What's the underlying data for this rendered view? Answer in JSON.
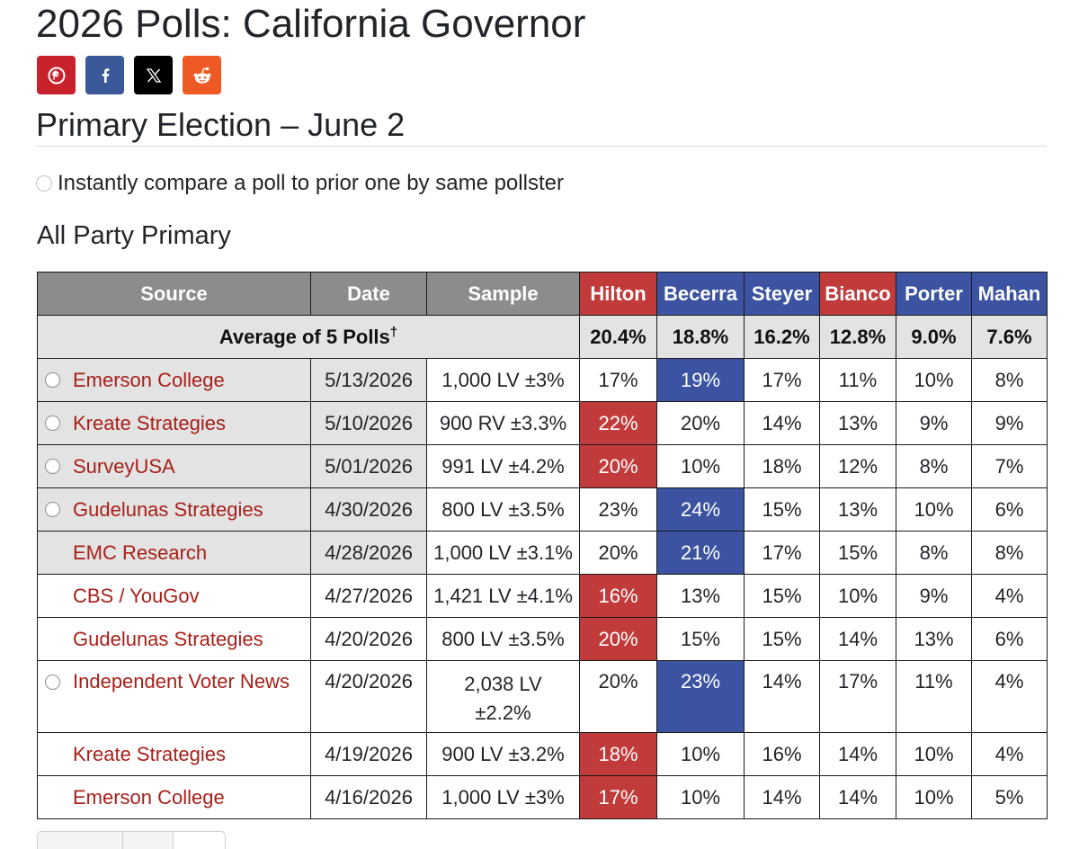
{
  "page": {
    "title": "2026 Polls: California Governor",
    "section_title": "Primary Election – June 2",
    "compare_label": "Instantly compare a poll to prior one by same pollster",
    "subsection_title": "All Party Primary"
  },
  "share": [
    {
      "name": "pinterest",
      "icon": "pinterest-icon",
      "color": "#c8232c"
    },
    {
      "name": "facebook",
      "icon": "facebook-icon",
      "color": "#3b5998"
    },
    {
      "name": "x",
      "icon": "x-icon",
      "color": "#000000"
    },
    {
      "name": "reddit",
      "icon": "reddit-icon",
      "color": "#ee5a24"
    }
  ],
  "table": {
    "headers": {
      "source": "Source",
      "date": "Date",
      "sample": "Sample",
      "candidates": [
        {
          "name": "Hilton",
          "party_color": "#c23b3b"
        },
        {
          "name": "Becerra",
          "party_color": "#3b53a0"
        },
        {
          "name": "Steyer",
          "party_color": "#3b53a0"
        },
        {
          "name": "Bianco",
          "party_color": "#c23b3b"
        },
        {
          "name": "Porter",
          "party_color": "#3b53a0"
        },
        {
          "name": "Mahan",
          "party_color": "#3b53a0"
        }
      ]
    },
    "average": {
      "label": "Average of 5 Polls",
      "dagger": "†",
      "values": [
        "20.4%",
        "18.8%",
        "16.2%",
        "12.8%",
        "9.0%",
        "7.6%"
      ]
    },
    "rows": [
      {
        "source": "Emerson College",
        "date": "5/13/2026",
        "sample": "1,000 LV ±3%",
        "values": [
          "17%",
          "19%",
          "17%",
          "11%",
          "10%",
          "8%"
        ],
        "leader": 1,
        "radio": true,
        "in_average": true
      },
      {
        "source": "Kreate Strategies",
        "date": "5/10/2026",
        "sample": "900 RV ±3.3%",
        "values": [
          "22%",
          "20%",
          "14%",
          "13%",
          "9%",
          "9%"
        ],
        "leader": 0,
        "radio": true,
        "in_average": true
      },
      {
        "source": "SurveyUSA",
        "date": "5/01/2026",
        "sample": "991 LV ±4.2%",
        "values": [
          "20%",
          "10%",
          "18%",
          "12%",
          "8%",
          "7%"
        ],
        "leader": 0,
        "radio": true,
        "in_average": true
      },
      {
        "source": "Gudelunas Strategies",
        "date": "4/30/2026",
        "sample": "800 LV ±3.5%",
        "values": [
          "23%",
          "24%",
          "15%",
          "13%",
          "10%",
          "6%"
        ],
        "leader": 1,
        "radio": true,
        "in_average": true
      },
      {
        "source": "EMC Research",
        "date": "4/28/2026",
        "sample": "1,000 LV ±3.1%",
        "values": [
          "20%",
          "21%",
          "17%",
          "15%",
          "8%",
          "8%"
        ],
        "leader": 1,
        "radio": false,
        "in_average": true
      },
      {
        "source": "CBS / YouGov",
        "date": "4/27/2026",
        "sample": "1,421 LV ±4.1%",
        "values": [
          "16%",
          "13%",
          "15%",
          "10%",
          "9%",
          "4%"
        ],
        "leader": 0,
        "radio": false,
        "in_average": false
      },
      {
        "source": "Gudelunas Strategies",
        "date": "4/20/2026",
        "sample": "800 LV ±3.5%",
        "values": [
          "20%",
          "15%",
          "15%",
          "14%",
          "13%",
          "6%"
        ],
        "leader": 0,
        "radio": false,
        "in_average": false
      },
      {
        "source": "Independent Voter News",
        "date": "4/20/2026",
        "sample": "2,038 LV ±2.2%",
        "values": [
          "20%",
          "23%",
          "14%",
          "17%",
          "11%",
          "4%"
        ],
        "leader": 1,
        "radio": true,
        "in_average": false,
        "tall": true
      },
      {
        "source": "Kreate Strategies",
        "date": "4/19/2026",
        "sample": "900 LV ±3.2%",
        "values": [
          "18%",
          "10%",
          "16%",
          "14%",
          "10%",
          "4%"
        ],
        "leader": 0,
        "radio": false,
        "in_average": false
      },
      {
        "source": "Emerson College",
        "date": "4/16/2026",
        "sample": "1,000 LV ±3%",
        "values": [
          "17%",
          "10%",
          "14%",
          "14%",
          "10%",
          "5%"
        ],
        "leader": 0,
        "radio": false,
        "in_average": false
      }
    ]
  }
}
